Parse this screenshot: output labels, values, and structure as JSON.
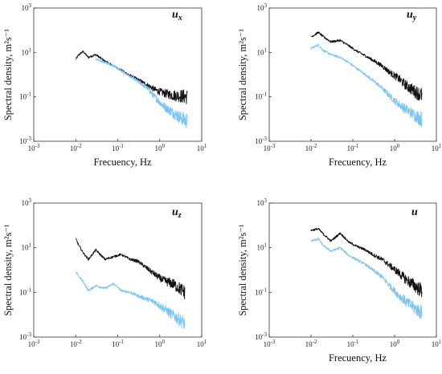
{
  "colors": {
    "black_series": "#111111",
    "blue_series": "#7cc4f0",
    "axis": "#333333"
  },
  "chart_data": [
    {
      "type": "line",
      "title": "u",
      "title_subscript": "x",
      "xlabel": "Frecuency, Hz",
      "ylabel": "Spectral density, m²s⁻¹",
      "xscale": "log",
      "yscale": "log",
      "xlim": [
        0.001,
        10
      ],
      "ylim": [
        0.001,
        1000
      ],
      "xticks": [
        {
          "mant": "10",
          "exp": "-3"
        },
        {
          "mant": "10",
          "exp": "-2"
        },
        {
          "mant": "10",
          "exp": "-1"
        },
        {
          "mant": "10",
          "exp": "0"
        },
        {
          "mant": "10",
          "exp": "1"
        }
      ],
      "yticks": [
        {
          "mant": "10",
          "exp": "-3"
        },
        {
          "mant": "10",
          "exp": "-1"
        },
        {
          "mant": "10",
          "exp": "1"
        },
        {
          "mant": "10",
          "exp": "3"
        }
      ],
      "series": [
        {
          "color": "black",
          "x": [
            0.01,
            0.012,
            0.015,
            0.02,
            0.03,
            0.05,
            0.08,
            0.12,
            0.2,
            0.3,
            0.5,
            0.8,
            1.2,
            2,
            3,
            4.5
          ],
          "values": [
            5,
            8,
            11,
            6,
            8,
            4,
            2.5,
            1.6,
            0.9,
            0.6,
            0.35,
            0.2,
            0.15,
            0.12,
            0.11,
            0.1
          ]
        },
        {
          "color": "blue",
          "x": [
            0.03,
            0.05,
            0.08,
            0.12,
            0.2,
            0.3,
            0.5,
            0.8,
            1.2,
            2,
            3,
            4.5
          ],
          "values": [
            5,
            3.5,
            2.5,
            1.5,
            0.8,
            0.5,
            0.25,
            0.09,
            0.04,
            0.02,
            0.012,
            0.008
          ]
        }
      ]
    },
    {
      "type": "line",
      "title": "u",
      "title_subscript": "y",
      "xlabel": "Frecuency, Hz",
      "ylabel": "Spectral density, m²s⁻¹",
      "xscale": "log",
      "yscale": "log",
      "xlim": [
        0.001,
        10
      ],
      "ylim": [
        0.001,
        1000
      ],
      "xticks": [
        {
          "mant": "10",
          "exp": "-3"
        },
        {
          "mant": "10",
          "exp": "-2"
        },
        {
          "mant": "10",
          "exp": "-1"
        },
        {
          "mant": "10",
          "exp": "0"
        },
        {
          "mant": "10",
          "exp": "1"
        }
      ],
      "yticks": [
        {
          "mant": "10",
          "exp": "-3"
        },
        {
          "mant": "10",
          "exp": "-1"
        },
        {
          "mant": "10",
          "exp": "1"
        },
        {
          "mant": "10",
          "exp": "3"
        }
      ],
      "series": [
        {
          "color": "black",
          "x": [
            0.01,
            0.015,
            0.02,
            0.03,
            0.05,
            0.08,
            0.12,
            0.2,
            0.3,
            0.5,
            0.8,
            1.2,
            2,
            3,
            4.5
          ],
          "values": [
            50,
            80,
            50,
            30,
            35,
            20,
            12,
            7,
            4.5,
            2.5,
            1.2,
            0.7,
            0.3,
            0.18,
            0.12
          ]
        },
        {
          "color": "blue",
          "x": [
            0.01,
            0.015,
            0.02,
            0.03,
            0.05,
            0.08,
            0.12,
            0.2,
            0.3,
            0.5,
            0.8,
            1.2,
            2,
            3,
            4.5
          ],
          "values": [
            15,
            22,
            12,
            8,
            6,
            3.5,
            2,
            1,
            0.55,
            0.25,
            0.1,
            0.05,
            0.025,
            0.015,
            0.01
          ]
        }
      ]
    },
    {
      "type": "line",
      "title": "u",
      "title_subscript": "z",
      "xlabel": "",
      "ylabel": "Spectral density, m²s⁻¹",
      "xscale": "log",
      "yscale": "log",
      "xlim": [
        0.001,
        10
      ],
      "ylim": [
        0.001,
        1000
      ],
      "xticks": [
        {
          "mant": "10",
          "exp": "-3"
        },
        {
          "mant": "10",
          "exp": "-2"
        },
        {
          "mant": "10",
          "exp": "-1"
        },
        {
          "mant": "10",
          "exp": "0"
        },
        {
          "mant": "10",
          "exp": "1"
        }
      ],
      "yticks": [
        {
          "mant": "10",
          "exp": "-3"
        },
        {
          "mant": "10",
          "exp": "-1"
        },
        {
          "mant": "10",
          "exp": "1"
        },
        {
          "mant": "10",
          "exp": "3"
        }
      ],
      "series": [
        {
          "color": "black",
          "x": [
            0.01,
            0.012,
            0.015,
            0.02,
            0.03,
            0.05,
            0.08,
            0.12,
            0.2,
            0.3,
            0.5,
            0.8,
            1.2,
            2,
            3,
            4
          ],
          "values": [
            25,
            12,
            6,
            3,
            8,
            3,
            4,
            5,
            3,
            2.5,
            1.2,
            0.6,
            0.35,
            0.25,
            0.15,
            0.1
          ]
        },
        {
          "color": "blue",
          "x": [
            0.01,
            0.015,
            0.02,
            0.03,
            0.05,
            0.08,
            0.12,
            0.2,
            0.3,
            0.5,
            0.8,
            1.2,
            2,
            3,
            4
          ],
          "values": [
            0.8,
            0.3,
            0.12,
            0.2,
            0.15,
            0.25,
            0.12,
            0.1,
            0.07,
            0.05,
            0.035,
            0.02,
            0.01,
            0.006,
            0.004
          ]
        }
      ]
    },
    {
      "type": "line",
      "title": "u",
      "title_subscript": "",
      "xlabel": "Frecuency, Hz",
      "ylabel": "Spectral density, m²s⁻¹",
      "xscale": "log",
      "yscale": "log",
      "xlim": [
        0.001,
        10
      ],
      "ylim": [
        0.001,
        1000
      ],
      "xticks": [
        {
          "mant": "10",
          "exp": "-3"
        },
        {
          "mant": "10",
          "exp": "-2"
        },
        {
          "mant": "10",
          "exp": "-1"
        },
        {
          "mant": "10",
          "exp": "0"
        },
        {
          "mant": "10",
          "exp": "1"
        }
      ],
      "yticks": [
        {
          "mant": "10",
          "exp": "3"
        },
        {
          "mant": "10",
          "exp": "1"
        },
        {
          "mant": "10",
          "exp": "-1"
        },
        {
          "mant": "10",
          "exp": "-3"
        }
      ],
      "series": [
        {
          "color": "black",
          "x": [
            0.01,
            0.015,
            0.02,
            0.03,
            0.05,
            0.08,
            0.12,
            0.2,
            0.3,
            0.5,
            0.8,
            1.2,
            2,
            3,
            4.5
          ],
          "values": [
            60,
            70,
            40,
            20,
            45,
            18,
            12,
            8,
            5,
            3,
            1.5,
            0.8,
            0.35,
            0.2,
            0.12
          ]
        },
        {
          "color": "blue",
          "x": [
            0.01,
            0.015,
            0.02,
            0.03,
            0.05,
            0.08,
            0.12,
            0.2,
            0.3,
            0.5,
            0.8,
            1.2,
            2,
            3,
            4.5
          ],
          "values": [
            20,
            25,
            12,
            7,
            10,
            4.5,
            3,
            1.8,
            1,
            0.5,
            0.18,
            0.08,
            0.035,
            0.02,
            0.012
          ]
        }
      ]
    }
  ]
}
